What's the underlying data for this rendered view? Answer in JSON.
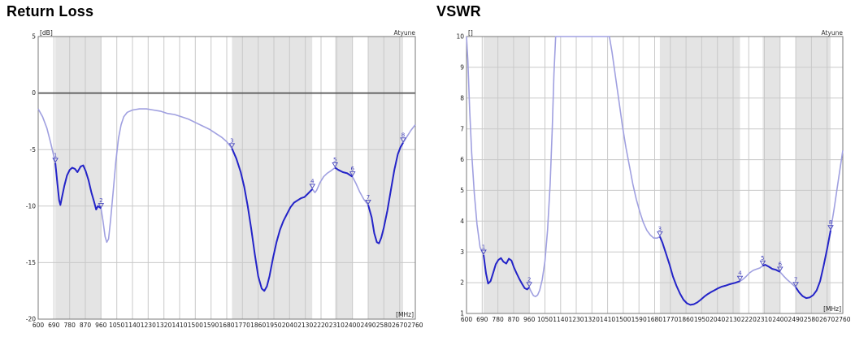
{
  "watermark": "Atyune",
  "colors": {
    "band_fill": "#e4e4e4",
    "grid": "#c9c9c9",
    "border": "#787878",
    "zero_line": "#555555",
    "curve_in_band": "#2424c8",
    "curve_out_band": "#a0a0e0",
    "marker": "#4646be",
    "tick_text": "#1a1a1a"
  },
  "bands_mhz": [
    [
      698,
      960
    ],
    [
      1710,
      2170
    ],
    [
      2300,
      2400
    ],
    [
      2490,
      2690
    ]
  ],
  "x_ticks": [
    600,
    690,
    780,
    870,
    960,
    1050,
    1140,
    1230,
    1320,
    1410,
    1500,
    1590,
    1680,
    1770,
    1860,
    1950,
    2040,
    2130,
    2220,
    2310,
    2400,
    2490,
    2580,
    2670,
    2760
  ],
  "chart_data": [
    {
      "type": "line",
      "title": "Return Loss",
      "unit": "[dB]",
      "x_label": "[MHz]",
      "x_range": [
        600,
        2760
      ],
      "y_range": [
        -20,
        5
      ],
      "y_ticks": [
        5,
        0,
        -5,
        -10,
        -15,
        -20
      ],
      "zero_line": 0,
      "grid": true,
      "markers": [
        {
          "n": "1",
          "mhz": 698,
          "value": -6.2
        },
        {
          "n": "2",
          "mhz": 960,
          "value": -10.2
        },
        {
          "n": "3",
          "mhz": 1710,
          "value": -4.9
        },
        {
          "n": "4",
          "mhz": 2170,
          "value": -8.5
        },
        {
          "n": "5",
          "mhz": 2300,
          "value": -6.6
        },
        {
          "n": "6",
          "mhz": 2400,
          "value": -7.4
        },
        {
          "n": "7",
          "mhz": 2490,
          "value": -9.9
        },
        {
          "n": "8",
          "mhz": 2690,
          "value": -4.4
        }
      ],
      "series": [
        {
          "name": "return-loss-db",
          "points": [
            [
              600,
              -1.4
            ],
            [
              625,
              -2.1
            ],
            [
              650,
              -3.1
            ],
            [
              670,
              -4.3
            ],
            [
              685,
              -5.3
            ],
            [
              698,
              -6.2
            ],
            [
              710,
              -8.0
            ],
            [
              720,
              -9.5
            ],
            [
              727,
              -9.9
            ],
            [
              735,
              -9.3
            ],
            [
              750,
              -8.2
            ],
            [
              765,
              -7.3
            ],
            [
              780,
              -6.8
            ],
            [
              795,
              -6.6
            ],
            [
              810,
              -6.7
            ],
            [
              825,
              -7.0
            ],
            [
              843,
              -6.5
            ],
            [
              858,
              -6.4
            ],
            [
              872,
              -6.9
            ],
            [
              888,
              -7.7
            ],
            [
              905,
              -8.8
            ],
            [
              920,
              -9.6
            ],
            [
              932,
              -10.3
            ],
            [
              942,
              -10.0
            ],
            [
              952,
              -10.1
            ],
            [
              960,
              -10.2
            ],
            [
              972,
              -11.4
            ],
            [
              983,
              -12.7
            ],
            [
              993,
              -13.2
            ],
            [
              1003,
              -12.9
            ],
            [
              1015,
              -11.2
            ],
            [
              1030,
              -8.6
            ],
            [
              1045,
              -6.0
            ],
            [
              1060,
              -4.0
            ],
            [
              1075,
              -2.8
            ],
            [
              1090,
              -2.1
            ],
            [
              1110,
              -1.7
            ],
            [
              1140,
              -1.5
            ],
            [
              1180,
              -1.4
            ],
            [
              1220,
              -1.4
            ],
            [
              1260,
              -1.5
            ],
            [
              1300,
              -1.6
            ],
            [
              1340,
              -1.8
            ],
            [
              1380,
              -1.9
            ],
            [
              1420,
              -2.1
            ],
            [
              1460,
              -2.3
            ],
            [
              1500,
              -2.6
            ],
            [
              1540,
              -2.9
            ],
            [
              1580,
              -3.2
            ],
            [
              1620,
              -3.6
            ],
            [
              1650,
              -3.9
            ],
            [
              1680,
              -4.3
            ],
            [
              1710,
              -4.9
            ],
            [
              1735,
              -5.8
            ],
            [
              1760,
              -7.0
            ],
            [
              1780,
              -8.3
            ],
            [
              1800,
              -10.0
            ],
            [
              1820,
              -12.0
            ],
            [
              1840,
              -14.2
            ],
            [
              1860,
              -16.2
            ],
            [
              1880,
              -17.3
            ],
            [
              1895,
              -17.5
            ],
            [
              1910,
              -17.1
            ],
            [
              1925,
              -16.2
            ],
            [
              1945,
              -14.6
            ],
            [
              1965,
              -13.2
            ],
            [
              1985,
              -12.1
            ],
            [
              2005,
              -11.3
            ],
            [
              2025,
              -10.7
            ],
            [
              2045,
              -10.1
            ],
            [
              2065,
              -9.7
            ],
            [
              2085,
              -9.5
            ],
            [
              2105,
              -9.3
            ],
            [
              2125,
              -9.2
            ],
            [
              2145,
              -8.9
            ],
            [
              2170,
              -8.5
            ],
            [
              2185,
              -8.8
            ],
            [
              2195,
              -8.6
            ],
            [
              2215,
              -7.9
            ],
            [
              2235,
              -7.4
            ],
            [
              2255,
              -7.1
            ],
            [
              2275,
              -6.9
            ],
            [
              2300,
              -6.6
            ],
            [
              2320,
              -6.8
            ],
            [
              2345,
              -7.0
            ],
            [
              2370,
              -7.1
            ],
            [
              2400,
              -7.4
            ],
            [
              2420,
              -8.0
            ],
            [
              2440,
              -8.7
            ],
            [
              2465,
              -9.4
            ],
            [
              2490,
              -9.9
            ],
            [
              2510,
              -11.0
            ],
            [
              2525,
              -12.4
            ],
            [
              2540,
              -13.2
            ],
            [
              2552,
              -13.3
            ],
            [
              2565,
              -12.8
            ],
            [
              2580,
              -11.9
            ],
            [
              2600,
              -10.4
            ],
            [
              2620,
              -8.6
            ],
            [
              2640,
              -6.8
            ],
            [
              2660,
              -5.4
            ],
            [
              2675,
              -4.8
            ],
            [
              2690,
              -4.4
            ],
            [
              2710,
              -3.9
            ],
            [
              2735,
              -3.3
            ],
            [
              2760,
              -2.8
            ]
          ]
        }
      ]
    },
    {
      "type": "line",
      "title": "VSWR",
      "unit": "[]",
      "x_label": "[MHz]",
      "x_range": [
        600,
        2760
      ],
      "y_range": [
        1,
        10
      ],
      "y_ticks": [
        10,
        9,
        8,
        7,
        6,
        5,
        4,
        3,
        2,
        1
      ],
      "grid": true,
      "markers": [
        {
          "n": "1",
          "mhz": 698,
          "value": 2.9
        },
        {
          "n": "2",
          "mhz": 960,
          "value": 1.85
        },
        {
          "n": "3",
          "mhz": 1710,
          "value": 3.5
        },
        {
          "n": "4",
          "mhz": 2170,
          "value": 2.05
        },
        {
          "n": "5",
          "mhz": 2300,
          "value": 2.55
        },
        {
          "n": "6",
          "mhz": 2400,
          "value": 2.35
        },
        {
          "n": "7",
          "mhz": 2490,
          "value": 1.85
        },
        {
          "n": "8",
          "mhz": 2690,
          "value": 3.7
        }
      ],
      "series": [
        {
          "name": "vswr",
          "points": [
            [
              600,
              11
            ],
            [
              608,
              9.2
            ],
            [
              618,
              7.6
            ],
            [
              630,
              6.2
            ],
            [
              645,
              4.9
            ],
            [
              660,
              3.9
            ],
            [
              678,
              3.15
            ],
            [
              698,
              2.9
            ],
            [
              712,
              2.3
            ],
            [
              724,
              1.97
            ],
            [
              738,
              2.05
            ],
            [
              752,
              2.3
            ],
            [
              768,
              2.6
            ],
            [
              783,
              2.74
            ],
            [
              798,
              2.8
            ],
            [
              812,
              2.68
            ],
            [
              828,
              2.62
            ],
            [
              843,
              2.78
            ],
            [
              858,
              2.72
            ],
            [
              872,
              2.5
            ],
            [
              888,
              2.3
            ],
            [
              905,
              2.1
            ],
            [
              920,
              1.95
            ],
            [
              934,
              1.82
            ],
            [
              948,
              1.78
            ],
            [
              960,
              1.85
            ],
            [
              970,
              1.72
            ],
            [
              984,
              1.58
            ],
            [
              996,
              1.55
            ],
            [
              1008,
              1.6
            ],
            [
              1020,
              1.75
            ],
            [
              1035,
              2.1
            ],
            [
              1050,
              2.7
            ],
            [
              1065,
              3.7
            ],
            [
              1080,
              5.2
            ],
            [
              1092,
              7.0
            ],
            [
              1102,
              8.8
            ],
            [
              1112,
              10.5
            ],
            [
              1150,
              12
            ],
            [
              1250,
              12
            ],
            [
              1350,
              12
            ],
            [
              1405,
              11
            ],
            [
              1420,
              10.2
            ],
            [
              1435,
              9.5
            ],
            [
              1455,
              8.7
            ],
            [
              1475,
              7.9
            ],
            [
              1495,
              7.1
            ],
            [
              1515,
              6.4
            ],
            [
              1535,
              5.8
            ],
            [
              1555,
              5.2
            ],
            [
              1575,
              4.7
            ],
            [
              1595,
              4.3
            ],
            [
              1615,
              3.95
            ],
            [
              1635,
              3.7
            ],
            [
              1655,
              3.55
            ],
            [
              1675,
              3.45
            ],
            [
              1695,
              3.45
            ],
            [
              1710,
              3.5
            ],
            [
              1725,
              3.3
            ],
            [
              1745,
              2.95
            ],
            [
              1765,
              2.6
            ],
            [
              1785,
              2.2
            ],
            [
              1805,
              1.9
            ],
            [
              1825,
              1.65
            ],
            [
              1845,
              1.45
            ],
            [
              1865,
              1.33
            ],
            [
              1885,
              1.28
            ],
            [
              1905,
              1.3
            ],
            [
              1925,
              1.36
            ],
            [
              1945,
              1.45
            ],
            [
              1965,
              1.55
            ],
            [
              1985,
              1.63
            ],
            [
              2005,
              1.7
            ],
            [
              2025,
              1.76
            ],
            [
              2045,
              1.82
            ],
            [
              2065,
              1.87
            ],
            [
              2085,
              1.9
            ],
            [
              2105,
              1.94
            ],
            [
              2125,
              1.97
            ],
            [
              2145,
              2.0
            ],
            [
              2170,
              2.05
            ],
            [
              2185,
              2.1
            ],
            [
              2205,
              2.2
            ],
            [
              2225,
              2.32
            ],
            [
              2245,
              2.4
            ],
            [
              2265,
              2.44
            ],
            [
              2285,
              2.48
            ],
            [
              2300,
              2.55
            ],
            [
              2315,
              2.58
            ],
            [
              2335,
              2.52
            ],
            [
              2355,
              2.45
            ],
            [
              2375,
              2.42
            ],
            [
              2400,
              2.35
            ],
            [
              2420,
              2.22
            ],
            [
              2440,
              2.1
            ],
            [
              2465,
              1.98
            ],
            [
              2490,
              1.85
            ],
            [
              2510,
              1.68
            ],
            [
              2530,
              1.56
            ],
            [
              2550,
              1.5
            ],
            [
              2570,
              1.52
            ],
            [
              2590,
              1.6
            ],
            [
              2610,
              1.75
            ],
            [
              2630,
              2.05
            ],
            [
              2650,
              2.55
            ],
            [
              2670,
              3.1
            ],
            [
              2690,
              3.7
            ],
            [
              2710,
              4.4
            ],
            [
              2735,
              5.35
            ],
            [
              2760,
              6.3
            ]
          ]
        }
      ]
    }
  ]
}
